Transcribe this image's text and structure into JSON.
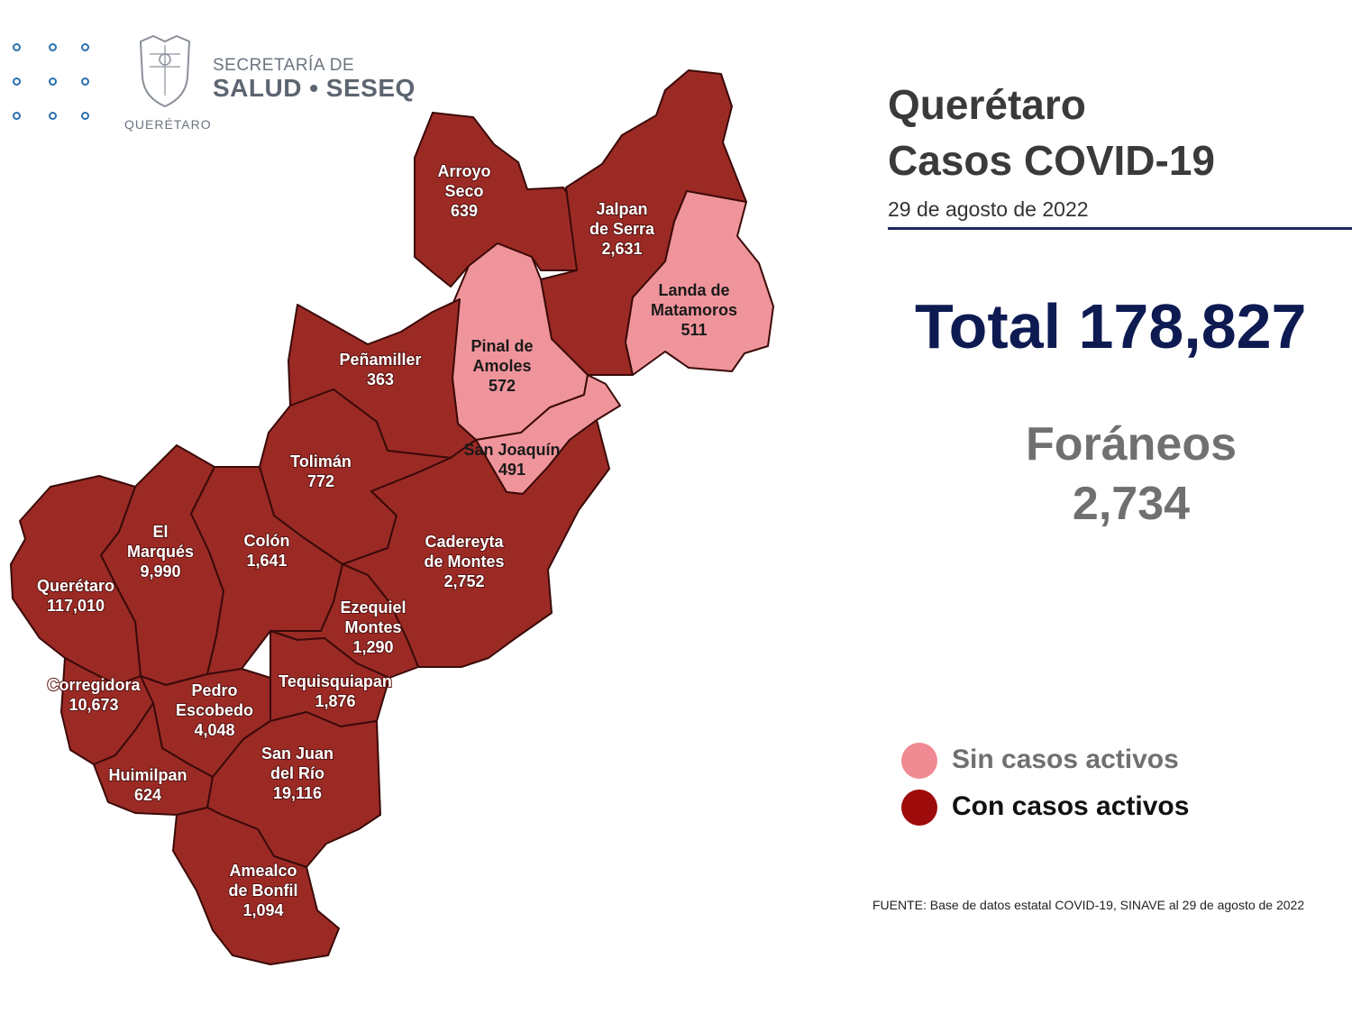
{
  "header": {
    "dept": "SECRETARÍA DE",
    "agency": "SALUD • SESEQ",
    "state": "QUERÉTARO"
  },
  "info": {
    "title_line1": "Querétaro",
    "title_line2": "Casos COVID-19",
    "date": "29 de agosto de 2022",
    "total": "Total 178,827",
    "foraneos_label": "Foráneos",
    "foraneos_value": "2,734"
  },
  "legend": {
    "inactive": {
      "label": "Sin casos activos",
      "color": "#f08a92",
      "text_color": "#707070"
    },
    "active": {
      "label": "Con casos activos",
      "color": "#9e0b0b",
      "text_color": "#111111"
    }
  },
  "source": "FUENTE: Base de datos estatal COVID-19, SINAVE al 29 de agosto de 2022",
  "colors": {
    "active_fill": "#9b2a25",
    "inactive_fill": "#f0949b"
  },
  "municipalities": [
    {
      "id": "arroyo-seco",
      "lines": [
        "Arroyo",
        "Seco"
      ],
      "cases": "639",
      "status": "active"
    },
    {
      "id": "jalpan",
      "lines": [
        "Jalpan",
        "de Serra"
      ],
      "cases": "2,631",
      "status": "active"
    },
    {
      "id": "landa",
      "lines": [
        "Landa de",
        "Matamoros"
      ],
      "cases": "511",
      "status": "inactive"
    },
    {
      "id": "pinal",
      "lines": [
        "Pinal de",
        "Amoles"
      ],
      "cases": "572",
      "status": "inactive"
    },
    {
      "id": "penamiller",
      "lines": [
        "Peñamiller"
      ],
      "cases": "363",
      "status": "active"
    },
    {
      "id": "san-joaquin",
      "lines": [
        "San Joaquín"
      ],
      "cases": "491",
      "status": "inactive"
    },
    {
      "id": "toliman",
      "lines": [
        "Tolimán"
      ],
      "cases": "772",
      "status": "active"
    },
    {
      "id": "cadereyta",
      "lines": [
        "Cadereyta",
        "de Montes"
      ],
      "cases": "2,752",
      "status": "active"
    },
    {
      "id": "el-marques",
      "lines": [
        "El",
        "Marqués"
      ],
      "cases": "9,990",
      "status": "active"
    },
    {
      "id": "colon",
      "lines": [
        "Colón"
      ],
      "cases": "1,641",
      "status": "active"
    },
    {
      "id": "queretaro",
      "lines": [
        "Querétaro"
      ],
      "cases": "117,010",
      "status": "active"
    },
    {
      "id": "ezequiel",
      "lines": [
        "Ezequiel",
        "Montes"
      ],
      "cases": "1,290",
      "status": "active"
    },
    {
      "id": "corregidora",
      "lines": [
        "Corregidora"
      ],
      "cases": "10,673",
      "status": "active"
    },
    {
      "id": "pedro",
      "lines": [
        "Pedro",
        "Escobedo"
      ],
      "cases": "4,048",
      "status": "active"
    },
    {
      "id": "tequisquiapan",
      "lines": [
        "Tequisquiapan"
      ],
      "cases": "1,876",
      "status": "active"
    },
    {
      "id": "huimilpan",
      "lines": [
        "Huimilpan"
      ],
      "cases": "624",
      "status": "active"
    },
    {
      "id": "san-juan",
      "lines": [
        "San Juan",
        "del Río"
      ],
      "cases": "19,116",
      "status": "active"
    },
    {
      "id": "amealco",
      "lines": [
        "Amealco",
        "de Bonfil"
      ],
      "cases": "1,094",
      "status": "active"
    }
  ]
}
